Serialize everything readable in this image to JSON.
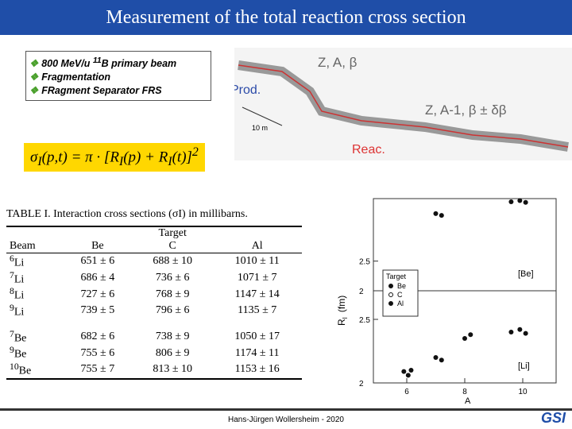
{
  "header": {
    "title": "Measurement of the total reaction cross section"
  },
  "bullets": [
    {
      "pre": "800 MeV/u ",
      "sup": "11",
      "post": "B primary beam"
    },
    {
      "pre": "Fragmentation"
    },
    {
      "pre": "FRagment Separator FRS"
    }
  ],
  "formula": [
    {
      "t": "σ"
    },
    {
      "sub": "I"
    },
    {
      "t": "(p,t) = π · [R"
    },
    {
      "sub": "I"
    },
    {
      "t": "(p) + R"
    },
    {
      "sub": "I"
    },
    {
      "t": "(t)]"
    },
    {
      "sup": "2"
    }
  ],
  "diagram": {
    "beam_in": "Z, A, β",
    "prod": "Prod.",
    "scale": "10 m",
    "beam_out": "Z, A-1, β ± δβ",
    "reac": "Reac."
  },
  "table": {
    "caption": "TABLE I.  Interaction cross sections (σI) in millibarns.",
    "group_header": "Target",
    "columns": [
      "Beam",
      "Be",
      "C",
      "Al"
    ],
    "groups": [
      [
        {
          "mass": "6",
          "el": "Li",
          "cells": [
            "651 ± 6",
            "688 ± 10",
            "1010 ± 11"
          ]
        },
        {
          "mass": "7",
          "el": "Li",
          "cells": [
            "686 ± 4",
            "736 ± 6",
            "1071 ± 7"
          ]
        },
        {
          "mass": "8",
          "el": "Li",
          "cells": [
            "727 ± 6",
            "768 ± 9",
            "1147 ± 14"
          ]
        },
        {
          "mass": "9",
          "el": "Li",
          "cells": [
            "739 ± 5",
            "796 ± 6",
            "1135 ± 7"
          ]
        }
      ],
      [
        {
          "mass": "7",
          "el": "Be",
          "cells": [
            "682 ± 6",
            "738 ± 9",
            "1050 ± 17"
          ]
        },
        {
          "mass": "9",
          "el": "Be",
          "cells": [
            "755 ± 6",
            "806 ± 9",
            "1174 ± 11"
          ]
        },
        {
          "mass": "10",
          "el": "Be",
          "cells": [
            "755 ± 7",
            "813 ± 10",
            "1153 ± 16"
          ]
        }
      ]
    ]
  },
  "plot": {
    "x_label": "A",
    "y_label": "R",
    "y_label_sub": "I",
    "y_unit": "(fm)",
    "xticks": [
      6,
      8,
      10
    ],
    "legend_title": "Target",
    "legend": [
      "Be",
      "C",
      "Al"
    ],
    "panels": [
      {
        "label": "[Be]",
        "yticks": [
          2.5,
          2.0
        ],
        "ylim": [
          2.0,
          3.5
        ],
        "points": [
          {
            "A": 7,
            "R": 3.3
          },
          {
            "A": 7.2,
            "R": 3.27
          },
          {
            "A": 9.6,
            "R": 3.5
          },
          {
            "A": 9.9,
            "R": 3.52
          },
          {
            "A": 10.1,
            "R": 3.49
          }
        ]
      },
      {
        "label": "[Li]",
        "yticks": [
          2.5,
          2.0
        ],
        "ylim": [
          2.0,
          2.7
        ],
        "points": [
          {
            "A": 5.9,
            "R": 2.09
          },
          {
            "A": 6.05,
            "R": 2.06
          },
          {
            "A": 6.15,
            "R": 2.1
          },
          {
            "A": 7,
            "R": 2.2
          },
          {
            "A": 7.2,
            "R": 2.18
          },
          {
            "A": 8,
            "R": 2.35
          },
          {
            "A": 8.2,
            "R": 2.38
          },
          {
            "A": 9.6,
            "R": 2.4
          },
          {
            "A": 9.9,
            "R": 2.42
          },
          {
            "A": 10.1,
            "R": 2.39
          }
        ]
      }
    ]
  },
  "footer": {
    "author": "Hans-Jürgen Wollersheim - 2020",
    "logo": "GSI"
  }
}
